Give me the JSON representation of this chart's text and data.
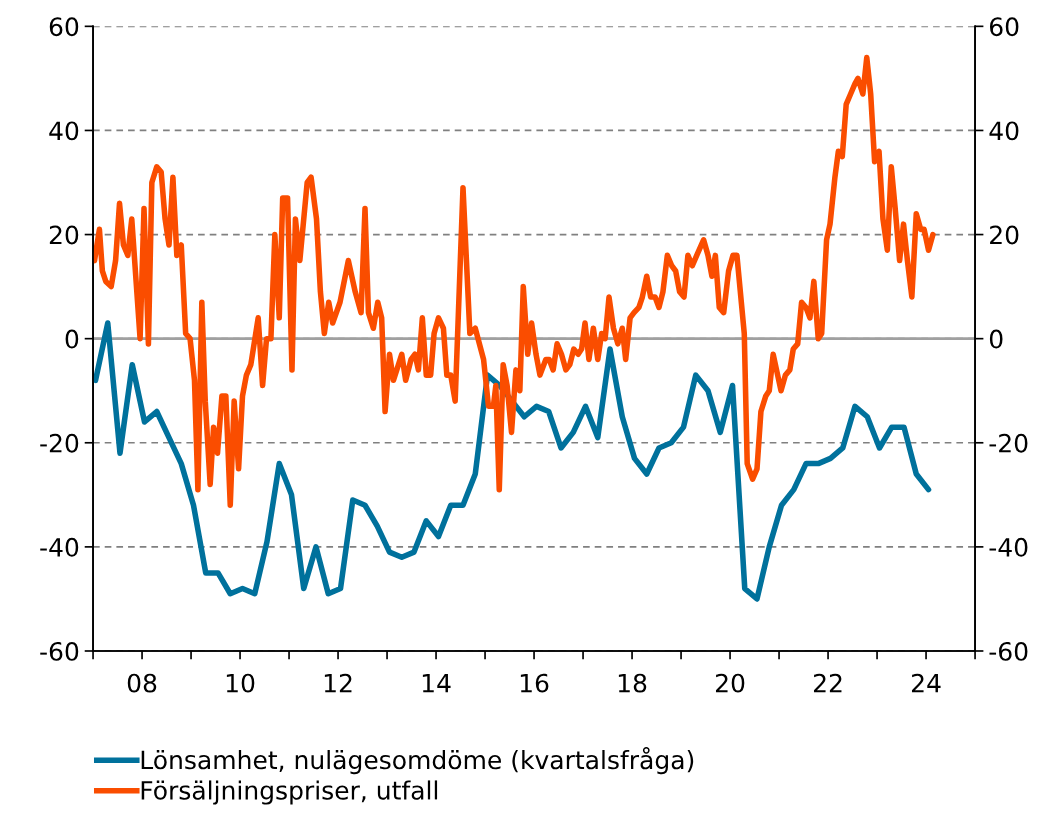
{
  "chart_data": {
    "type": "line",
    "series": [
      {
        "name": "Lönsamhet, nulägesomdöme (kvartalsfråga)",
        "color": "#00719c",
        "x": [
          2007.05,
          2007.3,
          2007.55,
          2007.8,
          2008.05,
          2008.3,
          2008.55,
          2008.8,
          2009.05,
          2009.3,
          2009.55,
          2009.8,
          2010.05,
          2010.3,
          2010.55,
          2010.8,
          2011.05,
          2011.3,
          2011.55,
          2011.8,
          2012.05,
          2012.3,
          2012.55,
          2012.8,
          2013.05,
          2013.3,
          2013.55,
          2013.8,
          2014.05,
          2014.3,
          2014.55,
          2014.8,
          2015.05,
          2015.3,
          2015.55,
          2015.8,
          2016.05,
          2016.3,
          2016.55,
          2016.8,
          2017.05,
          2017.3,
          2017.55,
          2017.8,
          2018.05,
          2018.3,
          2018.55,
          2018.8,
          2019.05,
          2019.3,
          2019.55,
          2019.8,
          2020.05,
          2020.3,
          2020.55,
          2020.8,
          2021.05,
          2021.3,
          2021.55,
          2021.8,
          2022.05,
          2022.3,
          2022.55,
          2022.8,
          2023.05,
          2023.3,
          2023.55,
          2023.8,
          2024.05
        ],
        "values": [
          -8,
          3,
          -22,
          -5,
          -16,
          -14,
          -19,
          -24,
          -32,
          -45,
          -45,
          -49,
          -48,
          -49,
          -39,
          -24,
          -30,
          -48,
          -40,
          -49,
          -48,
          -31,
          -32,
          -36,
          -41,
          -42,
          -41,
          -35,
          -38,
          -32,
          -32,
          -26,
          -7,
          -9,
          -12,
          -15,
          -13,
          -14,
          -21,
          -18,
          -13,
          -19,
          -2,
          -15,
          -23,
          -26,
          -21,
          -20,
          -17,
          -7,
          -10,
          -18,
          -9,
          -48,
          -50,
          -40,
          -32,
          -29,
          -24,
          -24,
          -23,
          -21,
          -13,
          -15,
          -21,
          -17,
          -17,
          -26,
          -29
        ]
      },
      {
        "name": "Försäljningspriser, utfall",
        "color": "#fa4d00",
        "x": [
          2007.03,
          2007.13,
          2007.19,
          2007.26,
          2007.37,
          2007.46,
          2007.54,
          2007.62,
          2007.71,
          2007.79,
          2007.96,
          2008.04,
          2008.13,
          2008.2,
          2008.3,
          2008.39,
          2008.47,
          2008.55,
          2008.63,
          2008.71,
          2008.8,
          2008.89,
          2008.98,
          2009.07,
          2009.14,
          2009.22,
          2009.29,
          2009.39,
          2009.46,
          2009.54,
          2009.63,
          2009.71,
          2009.8,
          2009.88,
          2009.97,
          2010.05,
          2010.13,
          2010.22,
          2010.37,
          2010.46,
          2010.54,
          2010.63,
          2010.71,
          2010.8,
          2010.87,
          2010.97,
          2011.06,
          2011.13,
          2011.22,
          2011.37,
          2011.45,
          2011.56,
          2011.64,
          2011.72,
          2011.81,
          2011.89,
          2012.04,
          2012.21,
          2012.35,
          2012.47,
          2012.55,
          2012.62,
          2012.72,
          2012.81,
          2012.89,
          2012.96,
          2013.05,
          2013.13,
          2013.3,
          2013.38,
          2013.49,
          2013.57,
          2013.64,
          2013.72,
          2013.8,
          2013.89,
          2013.96,
          2014.05,
          2014.15,
          2014.22,
          2014.3,
          2014.39,
          2014.55,
          2014.69,
          2014.8,
          2014.97,
          2015.07,
          2015.17,
          2015.22,
          2015.29,
          2015.37,
          2015.45,
          2015.54,
          2015.63,
          2015.71,
          2015.78,
          2015.87,
          2015.95,
          2016.04,
          2016.12,
          2016.24,
          2016.31,
          2016.39,
          2016.47,
          2016.56,
          2016.65,
          2016.73,
          2016.81,
          2016.9,
          2016.97,
          2017.04,
          2017.12,
          2017.21,
          2017.3,
          2017.38,
          2017.45,
          2017.53,
          2017.62,
          2017.71,
          2017.8,
          2017.87,
          2017.96,
          2018.04,
          2018.14,
          2018.21,
          2018.3,
          2018.38,
          2018.47,
          2018.55,
          2018.63,
          2018.72,
          2018.81,
          2018.89,
          2018.97,
          2019.06,
          2019.14,
          2019.23,
          2019.32,
          2019.46,
          2019.55,
          2019.63,
          2019.7,
          2019.78,
          2019.87,
          2019.97,
          2020.06,
          2020.14,
          2020.29,
          2020.35,
          2020.46,
          2020.55,
          2020.63,
          2020.73,
          2020.8,
          2020.88,
          2021.04,
          2021.13,
          2021.22,
          2021.29,
          2021.38,
          2021.46,
          2021.55,
          2021.63,
          2021.71,
          2021.8,
          2021.87,
          2021.97,
          2022.04,
          2022.14,
          2022.21,
          2022.29,
          2022.37,
          2022.46,
          2022.55,
          2022.61,
          2022.71,
          2022.79,
          2022.87,
          2022.95,
          2023.04,
          2023.12,
          2023.21,
          2023.29,
          2023.37,
          2023.46,
          2023.54,
          2023.62,
          2023.71,
          2023.8,
          2023.89,
          2023.96,
          2024.05,
          2024.14
        ],
        "values": [
          15,
          21,
          13,
          11,
          10,
          15,
          26,
          18,
          16,
          23,
          0,
          25,
          -1,
          30,
          33,
          32,
          23,
          18,
          31,
          16,
          18,
          1,
          0,
          -8,
          -29,
          7,
          -12,
          -28,
          -17,
          -22,
          -11,
          -11,
          -32,
          -12,
          -25,
          -11,
          -7,
          -5,
          4,
          -9,
          0,
          0,
          20,
          4,
          27,
          27,
          -6,
          23,
          15,
          30,
          31,
          23,
          9,
          1,
          7,
          3,
          7,
          15,
          9,
          5,
          25,
          5,
          2,
          7,
          4,
          -14,
          -3,
          -8,
          -3,
          -8,
          -4,
          -3,
          -6,
          4,
          -7,
          -7,
          1,
          4,
          2,
          -7,
          -7,
          -12,
          29,
          1,
          2,
          -4,
          -13,
          -13,
          -9,
          -29,
          -5,
          -9,
          -18,
          -6,
          -10,
          10,
          -3,
          3,
          -3,
          -7,
          -4,
          -4,
          -6,
          -1,
          -3,
          -6,
          -5,
          -2,
          -3,
          -2,
          3,
          -4,
          2,
          -4,
          1,
          0,
          8,
          2,
          -1,
          2,
          -4,
          4,
          5,
          6,
          8,
          12,
          8,
          8,
          6,
          9,
          16,
          14,
          13,
          9,
          8,
          16,
          14,
          16,
          19,
          16,
          12,
          16,
          6,
          5,
          13,
          16,
          16,
          1,
          -24,
          -27,
          -25,
          -14,
          -11,
          -10,
          -3,
          -10,
          -7,
          -6,
          -2,
          -1,
          7,
          6,
          4,
          11,
          0,
          1,
          19,
          22,
          31,
          36,
          35,
          45,
          47,
          49,
          50,
          47,
          54,
          47,
          34,
          36,
          23,
          17,
          33,
          25,
          15,
          22,
          15,
          8,
          24,
          21,
          21,
          17,
          20
        ]
      }
    ],
    "xlim": [
      2007,
      2025
    ],
    "xticks": [
      {
        "value": 2007,
        "label": null
      },
      {
        "value": 2008,
        "label": "08"
      },
      {
        "value": 2009,
        "label": null
      },
      {
        "value": 2010,
        "label": "10"
      },
      {
        "value": 2011,
        "label": null
      },
      {
        "value": 2012,
        "label": "12"
      },
      {
        "value": 2013,
        "label": null
      },
      {
        "value": 2014,
        "label": "14"
      },
      {
        "value": 2015,
        "label": null
      },
      {
        "value": 2016,
        "label": "16"
      },
      {
        "value": 2017,
        "label": null
      },
      {
        "value": 2018,
        "label": "18"
      },
      {
        "value": 2019,
        "label": null
      },
      {
        "value": 2020,
        "label": "20"
      },
      {
        "value": 2021,
        "label": null
      },
      {
        "value": 2022,
        "label": "22"
      },
      {
        "value": 2023,
        "label": null
      },
      {
        "value": 2024,
        "label": "24"
      },
      {
        "value": 2025,
        "label": null
      }
    ],
    "ylim": [
      -60,
      60
    ],
    "yticks": [
      -60,
      -40,
      -20,
      0,
      20,
      40,
      60
    ],
    "y2lim": [
      -60,
      60
    ],
    "y2ticks": [
      -60,
      -40,
      -20,
      0,
      20,
      40,
      60
    ],
    "ref_lines": [
      {
        "axis": "y",
        "value": 0,
        "label": null,
        "color": "#a0a0a0",
        "line_style": "solid"
      }
    ],
    "grid": "y",
    "line_style": "solid",
    "marker": "none",
    "legend": "bottom"
  }
}
